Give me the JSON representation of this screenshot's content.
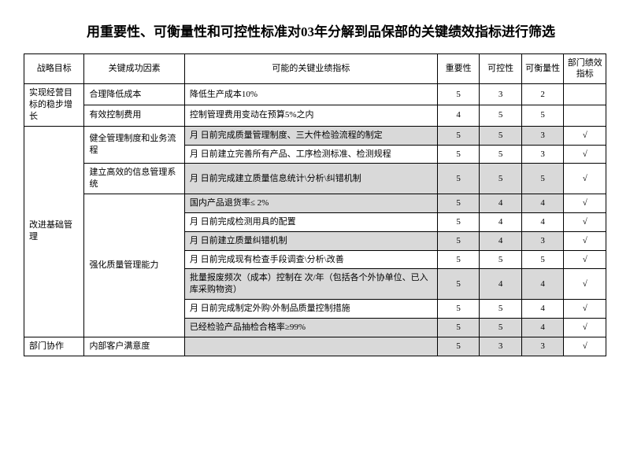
{
  "title": "用重要性、可衡量性和可控性标准对03年分解到品保部的关键绩效指标进行筛选",
  "headers": {
    "strategy": "战略目标",
    "factor": "关键成功因素",
    "kpi": "可能的关键业绩指标",
    "importance": "重要性",
    "control": "可控性",
    "measure": "可衡量性",
    "dept": "部门绩效指标"
  },
  "rows": [
    {
      "strategy": "实现经营目标的稳步增长",
      "strategy_span": 2,
      "factor": "合理降低成本",
      "factor_span": 1,
      "kpi": "降低生产成本10%",
      "importance": "5",
      "control": "3",
      "measure": "2",
      "check": "",
      "shade_kpi": false,
      "shade_scores": false
    },
    {
      "factor": "有效控制费用",
      "factor_span": 1,
      "kpi": "控制管理费用变动在预算5%之内",
      "importance": "4",
      "control": "5",
      "measure": "5",
      "check": "",
      "shade_kpi": false,
      "shade_scores": false
    },
    {
      "strategy": "改进基础管理",
      "strategy_span": 10,
      "factor": "健全管理制度和业务流程",
      "factor_span": 2,
      "kpi": "  月  日前完成质量管理制度、三大件检验流程的制定",
      "importance": "5",
      "control": "5",
      "measure": "3",
      "check": "√",
      "shade_kpi": true,
      "shade_scores": true
    },
    {
      "kpi": "  月  日前建立完善所有产品、工序检测标准、检测规程",
      "importance": "5",
      "control": "5",
      "measure": "3",
      "check": "√",
      "shade_kpi": false,
      "shade_scores": false
    },
    {
      "factor": "建立高效的信息管理系统",
      "factor_span": 1,
      "kpi": "  月  日前完成建立质量信息统计\\分析\\纠错机制",
      "importance": "5",
      "control": "5",
      "measure": "5",
      "check": "√",
      "shade_kpi": true,
      "shade_scores": true
    },
    {
      "factor": "强化质量管理能力",
      "factor_span": 7,
      "kpi": "国内产品退货率≤ 2%",
      "importance": "5",
      "control": "4",
      "measure": "4",
      "check": "√",
      "shade_kpi": true,
      "shade_scores": true
    },
    {
      "kpi": "  月  日前完成检测用具的配置",
      "importance": "5",
      "control": "4",
      "measure": "4",
      "check": "√",
      "shade_kpi": false,
      "shade_scores": false
    },
    {
      "kpi": "  月  日前建立质量纠错机制",
      "importance": "5",
      "control": "4",
      "measure": "3",
      "check": "√",
      "shade_kpi": true,
      "shade_scores": true
    },
    {
      "kpi": "  月  日前完成现有检查手段调查\\分析\\改善",
      "importance": "5",
      "control": "5",
      "measure": "5",
      "check": "√",
      "shade_kpi": false,
      "shade_scores": false
    },
    {
      "kpi": "批量报废频次（成本）控制在      次/年（包括各个外协单位、已入库采购物资）",
      "importance": "5",
      "control": "4",
      "measure": "4",
      "check": "√",
      "shade_kpi": true,
      "shade_scores": true
    },
    {
      "kpi": "  月  日前完成制定外购\\外制品质量控制措施",
      "importance": "5",
      "control": "5",
      "measure": "4",
      "check": "√",
      "shade_kpi": false,
      "shade_scores": false
    },
    {
      "kpi": "已经检验产品抽检合格率≥99%",
      "importance": "5",
      "control": "5",
      "measure": "4",
      "check": "√",
      "shade_kpi": true,
      "shade_scores": true
    },
    {
      "strategy": "部门协作",
      "strategy_span": 1,
      "factor": "内部客户满意度",
      "factor_span": 1,
      "kpi": "",
      "importance": "5",
      "control": "3",
      "measure": "3",
      "check": "√",
      "shade_kpi": true,
      "shade_scores": true
    }
  ],
  "colors": {
    "shade": "#d9d9d9",
    "border": "#000000",
    "bg": "#ffffff"
  }
}
